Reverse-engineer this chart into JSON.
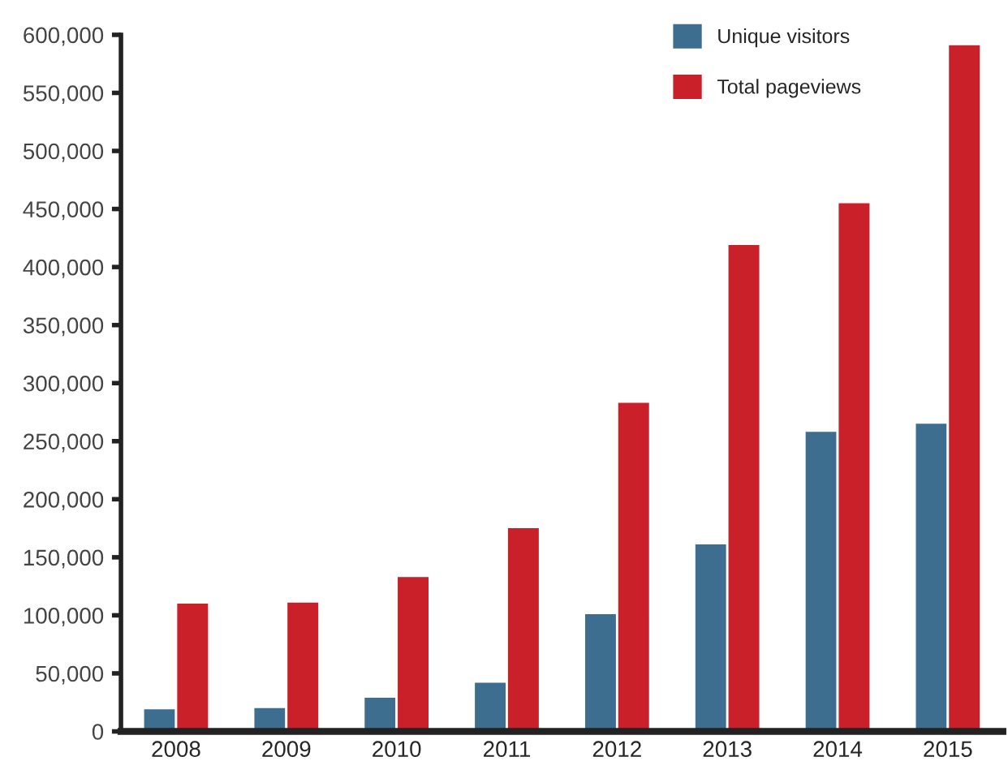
{
  "chart_data": {
    "type": "bar",
    "categories": [
      "2008",
      "2009",
      "2010",
      "2011",
      "2012",
      "2013",
      "2014",
      "2015"
    ],
    "series": [
      {
        "name": "Unique visitors",
        "color": "#3d6e8f",
        "values": [
          20000,
          21000,
          30000,
          43000,
          102000,
          162000,
          259000,
          266000
        ]
      },
      {
        "name": "Total pageviews",
        "color": "#c9202a",
        "values": [
          111000,
          112000,
          134000,
          176000,
          284000,
          420000,
          456000,
          592000
        ]
      }
    ],
    "ylim": [
      0,
      600000
    ],
    "yticks": [
      {
        "value": 0,
        "label": "0"
      },
      {
        "value": 50000,
        "label": "50,000"
      },
      {
        "value": 100000,
        "label": "100,000"
      },
      {
        "value": 150000,
        "label": "150,000"
      },
      {
        "value": 200000,
        "label": "200,000"
      },
      {
        "value": 250000,
        "label": "250,000"
      },
      {
        "value": 300000,
        "label": "300,000"
      },
      {
        "value": 350000,
        "label": "350,000"
      },
      {
        "value": 400000,
        "label": "400,000"
      },
      {
        "value": 450000,
        "label": "450,000"
      },
      {
        "value": 500000,
        "label": "500,000"
      },
      {
        "value": 550000,
        "label": "550,000"
      },
      {
        "value": 600000,
        "label": "600,000"
      }
    ],
    "grid": false,
    "legend": "top right"
  }
}
